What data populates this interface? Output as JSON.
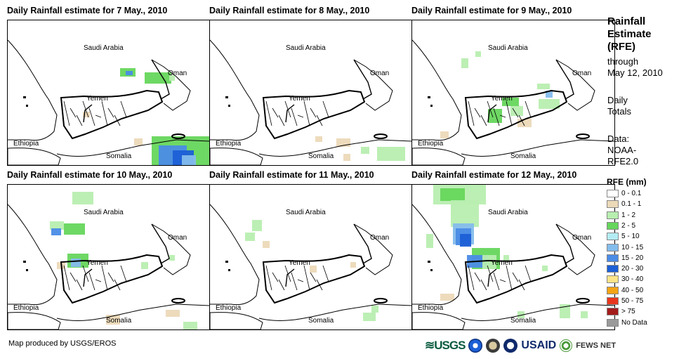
{
  "panels": [
    {
      "title": "Daily Rainfall estimate for 7 May., 2010"
    },
    {
      "title": "Daily Rainfall estimate for 8 May., 2010"
    },
    {
      "title": "Daily Rainfall estimate for 9 May., 2010"
    },
    {
      "title": "Daily Rainfall estimate for 10 May., 2010"
    },
    {
      "title": "Daily Rainfall estimate for 11 May., 2010"
    },
    {
      "title": "Daily Rainfall estimate for 12 May., 2010"
    }
  ],
  "map_labels": {
    "saudi": "Saudi Arabia",
    "oman": "Oman",
    "yemen": "Yemen",
    "ethiopia": "Ethiopia",
    "somalia": "Somalia"
  },
  "side": {
    "title_1": "Rainfall",
    "title_2": "Estimate",
    "title_3": "(RFE)",
    "through": "through",
    "date": "May 12, 2010",
    "daily": "Daily",
    "totals": "Totals",
    "data_1": "Data:",
    "data_2": "NOAA-",
    "data_3": "RFE2.0"
  },
  "legend": {
    "title": "RFE (mm)",
    "items": [
      {
        "label": "0 - 0.1",
        "color": "#ffffff"
      },
      {
        "label": "0.1 - 1",
        "color": "#ecd9b8"
      },
      {
        "label": "1 - 2",
        "color": "#b8eeb0"
      },
      {
        "label": "2 - 5",
        "color": "#66d65c"
      },
      {
        "label": "5 - 10",
        "color": "#b4ecf4"
      },
      {
        "label": "10 - 15",
        "color": "#84bcec"
      },
      {
        "label": "15 - 20",
        "color": "#4a8ce6"
      },
      {
        "label": "20 - 30",
        "color": "#1c5fd6"
      },
      {
        "label": "30 - 40",
        "color": "#fde488"
      },
      {
        "label": "40 - 50",
        "color": "#f4a416"
      },
      {
        "label": "50 - 75",
        "color": "#e8361c"
      },
      {
        "label": "> 75",
        "color": "#a41c1c"
      },
      {
        "label": "No Data",
        "color": "#9a9a9a"
      }
    ]
  },
  "credit": "Map produced by USGS/EROS",
  "logos": {
    "usgs": "≋USGS",
    "usaid": "USAID",
    "fews": "FEWS NET"
  }
}
